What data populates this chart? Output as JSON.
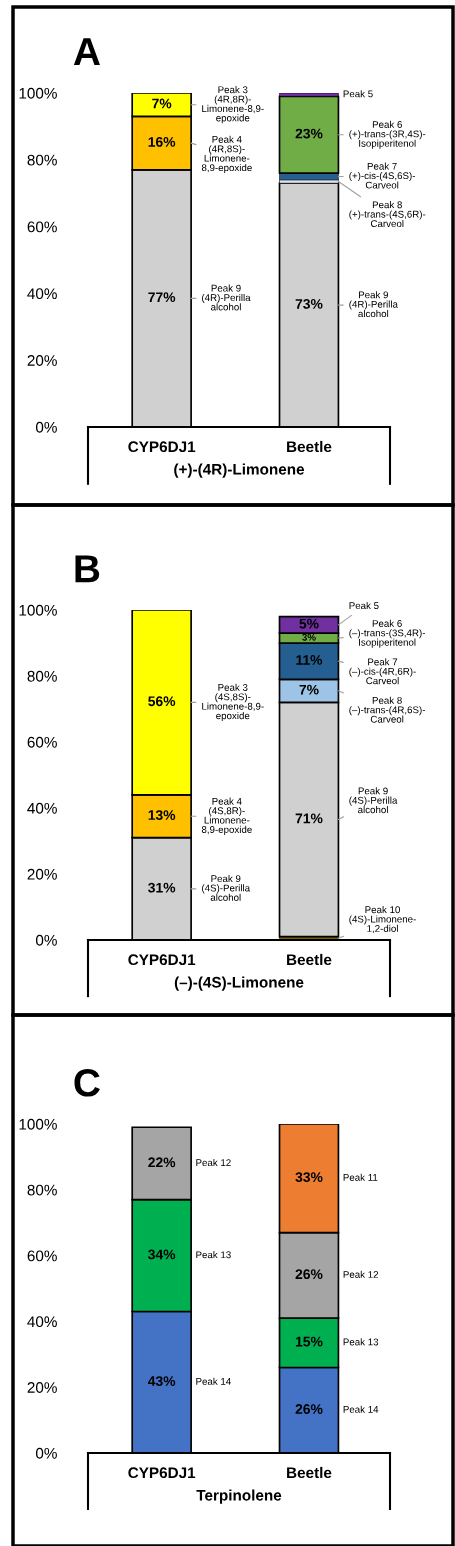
{
  "chart_data": [
    {
      "type": "bar",
      "stacked": true,
      "title": "A",
      "xlabel": "(+)-(4R)-Limonene",
      "categories": [
        "CYP6DJ1",
        "Beetle"
      ],
      "ylim": [
        0,
        100
      ],
      "yticks": [
        {
          "value": 0,
          "label": "0%"
        },
        {
          "value": 20,
          "label": "20%"
        },
        {
          "value": 40,
          "label": "40%"
        },
        {
          "value": 60,
          "label": "60%"
        },
        {
          "value": 80,
          "label": "80%"
        },
        {
          "value": 100,
          "label": "100%"
        }
      ],
      "series": [
        {
          "name": "Peak 9\n(4R)-Perilla\nalcohol",
          "color": "#d0d0d0",
          "values": [
            77,
            73
          ],
          "value_labels": [
            "77%",
            "73%"
          ]
        },
        {
          "name": "Peak 8\n(+)-trans-(4S,6R)-\nCarveol",
          "color": "#dce6f2",
          "values": [
            null,
            1
          ],
          "value_labels": [
            null,
            null
          ]
        },
        {
          "name": "Peak 7\n(+)-cis-(4S,6S)-\nCarveol",
          "color": "#255e91",
          "values": [
            null,
            2
          ],
          "value_labels": [
            null,
            null
          ]
        },
        {
          "name": "Peak 6\n(+)-trans-(3R,4S)-\nIsopiperitenol",
          "color": "#70ad47",
          "values": [
            null,
            23
          ],
          "value_labels": [
            null,
            "23%"
          ]
        },
        {
          "name": "Peak 5",
          "color": "#7030a0",
          "values": [
            null,
            1
          ],
          "value_labels": [
            null,
            null
          ]
        },
        {
          "name": "Peak 4\n(4R,8S)-\nLimonene-\n8,9-epoxide",
          "color": "#ffc000",
          "values": [
            16,
            null
          ],
          "value_labels": [
            "16%",
            null
          ]
        },
        {
          "name": "Peak 3\n(4R,8R)-\nLimonene-8,9-\nepoxide",
          "color": "#ffff00",
          "values": [
            7,
            null
          ],
          "value_labels": [
            "7%",
            null
          ]
        }
      ]
    },
    {
      "type": "bar",
      "stacked": true,
      "title": "B",
      "xlabel": "(–)-(4S)-Limonene",
      "categories": [
        "CYP6DJ1",
        "Beetle"
      ],
      "ylim": [
        0,
        100
      ],
      "yticks": [
        {
          "value": 0,
          "label": "0%"
        },
        {
          "value": 20,
          "label": "20%"
        },
        {
          "value": 40,
          "label": "40%"
        },
        {
          "value": 60,
          "label": "60%"
        },
        {
          "value": 80,
          "label": "80%"
        },
        {
          "value": 100,
          "label": "100%"
        }
      ],
      "series": [
        {
          "name": "Peak 10\n(4S)-Limonene-\n1,2-diol",
          "color": "#7f6000",
          "values": [
            null,
            1
          ],
          "value_labels": [
            null,
            null
          ]
        },
        {
          "name": "Peak 9\n(4S)-Perilla\nalcohol",
          "color": "#d0d0d0",
          "values": [
            31,
            71
          ],
          "value_labels": [
            "31%",
            "71%"
          ]
        },
        {
          "name": "Peak 8\n(–)-trans-(4R,6S)-\nCarveol",
          "color": "#9dc3e6",
          "values": [
            null,
            7
          ],
          "value_labels": [
            null,
            "7%"
          ]
        },
        {
          "name": "Peak 7\n(–)-cis-(4R,6R)-\nCarveol",
          "color": "#255e91",
          "values": [
            null,
            11
          ],
          "value_labels": [
            null,
            "11%"
          ]
        },
        {
          "name": "Peak 6\n(–)-trans-(3S,4R)-\nIsopiperitenol",
          "color": "#70ad47",
          "values": [
            null,
            3
          ],
          "value_labels": [
            null,
            "3%"
          ]
        },
        {
          "name": "Peak 5",
          "color": "#7030a0",
          "values": [
            null,
            5
          ],
          "value_labels": [
            null,
            "5%"
          ]
        },
        {
          "name": "Peak 4\n(4S,8R)-\nLimonene-\n8,9-epoxide",
          "color": "#ffc000",
          "values": [
            13,
            null
          ],
          "value_labels": [
            "13%",
            null
          ]
        },
        {
          "name": "Peak 3\n(4S,8S)-\nLimonene-8,9-\nepoxide",
          "color": "#ffff00",
          "values": [
            56,
            null
          ],
          "value_labels": [
            "56%",
            null
          ]
        }
      ]
    },
    {
      "type": "bar",
      "stacked": true,
      "title": "C",
      "xlabel": "Terpinolene",
      "categories": [
        "CYP6DJ1",
        "Beetle"
      ],
      "ylim": [
        0,
        100
      ],
      "yticks": [
        {
          "value": 0,
          "label": "0%"
        },
        {
          "value": 20,
          "label": "20%"
        },
        {
          "value": 40,
          "label": "40%"
        },
        {
          "value": 60,
          "label": "60%"
        },
        {
          "value": 80,
          "label": "80%"
        },
        {
          "value": 100,
          "label": "100%"
        }
      ],
      "series": [
        {
          "name": "Peak 14",
          "color": "#4472c4",
          "values": [
            43,
            26
          ],
          "value_labels": [
            "43%",
            "26%"
          ]
        },
        {
          "name": "Peak 13",
          "color": "#00b050",
          "values": [
            34,
            15
          ],
          "value_labels": [
            "34%",
            "15%"
          ]
        },
        {
          "name": "Peak 12",
          "color": "#a5a5a5",
          "values": [
            22,
            26
          ],
          "value_labels": [
            "22%",
            "26%"
          ]
        },
        {
          "name": "Peak 11",
          "color": "#ed7d31",
          "values": [
            null,
            33
          ],
          "value_labels": [
            null,
            "33%"
          ]
        }
      ]
    }
  ]
}
